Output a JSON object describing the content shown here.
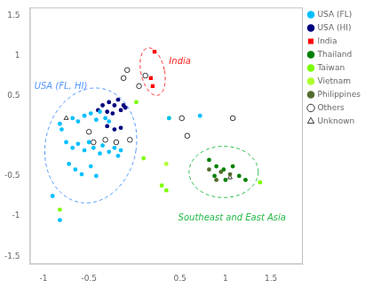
{
  "chart_data": {
    "type": "scatter",
    "series": [
      {
        "name": "USA (FL)",
        "color": "#00BFFF",
        "marker": "circle",
        "values": [
          [
            -0.82,
            0.15
          ],
          [
            -0.8,
            0.08
          ],
          [
            -0.68,
            0.22
          ],
          [
            -0.62,
            0.18
          ],
          [
            -0.55,
            0.25
          ],
          [
            -0.48,
            0.28
          ],
          [
            -0.42,
            0.2
          ],
          [
            -0.38,
            0.3
          ],
          [
            -0.32,
            0.22
          ],
          [
            -0.28,
            0.18
          ],
          [
            -0.75,
            -0.08
          ],
          [
            -0.68,
            -0.15
          ],
          [
            -0.62,
            -0.1
          ],
          [
            -0.55,
            -0.18
          ],
          [
            -0.5,
            -0.08
          ],
          [
            -0.45,
            -0.15
          ],
          [
            -0.38,
            -0.22
          ],
          [
            -0.35,
            -0.12
          ],
          [
            -0.28,
            -0.2
          ],
          [
            -0.22,
            -0.15
          ],
          [
            -0.18,
            -0.25
          ],
          [
            -0.15,
            -0.18
          ],
          [
            -0.72,
            -0.35
          ],
          [
            -0.65,
            -0.42
          ],
          [
            -0.58,
            -0.48
          ],
          [
            -0.48,
            -0.38
          ],
          [
            -0.42,
            -0.5
          ],
          [
            -0.9,
            -0.75
          ],
          [
            -0.82,
            -1.05
          ],
          [
            0.72,
            0.25
          ],
          [
            0.38,
            0.22
          ]
        ]
      },
      {
        "name": "USA (HI)",
        "color": "#000080",
        "marker": "circle",
        "values": [
          [
            -0.35,
            0.38
          ],
          [
            -0.28,
            0.42
          ],
          [
            -0.22,
            0.38
          ],
          [
            -0.18,
            0.45
          ],
          [
            -0.12,
            0.38
          ],
          [
            -0.3,
            0.3
          ],
          [
            -0.24,
            0.28
          ],
          [
            -0.15,
            0.32
          ],
          [
            -0.4,
            0.32
          ],
          [
            -0.1,
            0.35
          ],
          [
            -0.3,
            0.12
          ],
          [
            -0.22,
            0.08
          ],
          [
            -0.15,
            0.1
          ]
        ]
      },
      {
        "name": "India",
        "color": "#FF0000",
        "marker": "square",
        "values": [
          [
            0.22,
            1.05
          ],
          [
            0.18,
            0.72
          ],
          [
            0.2,
            0.62
          ]
        ]
      },
      {
        "name": "Thailand",
        "color": "#008000",
        "marker": "circle",
        "values": [
          [
            0.82,
            -0.3
          ],
          [
            0.9,
            -0.38
          ],
          [
            0.98,
            -0.42
          ],
          [
            1.08,
            -0.38
          ],
          [
            0.88,
            -0.5
          ],
          [
            1.0,
            -0.55
          ],
          [
            1.15,
            -0.5
          ],
          [
            1.22,
            -0.55
          ]
        ]
      },
      {
        "name": "Taiwan",
        "color": "#7CFC00",
        "marker": "circle",
        "values": [
          [
            0.02,
            0.42
          ],
          [
            0.38,
            0.22
          ],
          [
            0.1,
            -0.28
          ],
          [
            0.3,
            -0.62
          ],
          [
            0.35,
            -0.68
          ],
          [
            1.38,
            -0.58
          ],
          [
            -0.82,
            -0.92
          ]
        ]
      },
      {
        "name": "Vietnam",
        "color": "#ADFF2F",
        "marker": "circle",
        "values": [
          [
            0.35,
            -0.35
          ]
        ]
      },
      {
        "name": "Philippines",
        "color": "#556B2F",
        "marker": "circle",
        "values": [
          [
            0.82,
            -0.42
          ],
          [
            0.95,
            -0.45
          ],
          [
            1.05,
            -0.48
          ],
          [
            0.9,
            -0.55
          ]
        ]
      },
      {
        "name": "Others",
        "color": "#333333",
        "marker": "open_circle",
        "values": [
          [
            -0.08,
            0.82
          ],
          [
            -0.12,
            0.72
          ],
          [
            0.05,
            0.62
          ],
          [
            0.12,
            0.75
          ],
          [
            -0.05,
            -0.05
          ],
          [
            -0.2,
            -0.08
          ],
          [
            -0.32,
            -0.05
          ],
          [
            -0.45,
            -0.08
          ],
          [
            -0.5,
            0.05
          ],
          [
            0.52,
            0.22
          ],
          [
            1.08,
            0.22
          ],
          [
            0.58,
            0.0
          ]
        ]
      },
      {
        "name": "Unknown",
        "color": "#333333",
        "marker": "open_triangle",
        "values": [
          [
            -0.75,
            0.22
          ],
          [
            1.05,
            -0.52
          ]
        ]
      }
    ],
    "xlim": [
      -1.15,
      1.85
    ],
    "ylim": [
      -1.6,
      1.6
    ],
    "xticks": [
      -1,
      -0.5,
      0.5,
      1,
      1.5
    ],
    "yticks": [
      -1.5,
      -1,
      -0.5,
      0.5,
      1,
      1.5
    ],
    "grid": false,
    "legend": "right",
    "ellipses": [
      {
        "cx": 0.2,
        "cy": 0.8,
        "rx": 0.13,
        "ry": 0.3,
        "angle": 10,
        "color": "#FF2222"
      },
      {
        "cx": -0.48,
        "cy": -0.12,
        "rx": 0.5,
        "ry": 0.72,
        "angle": -8,
        "color": "#5599FF"
      },
      {
        "cx": 0.98,
        "cy": -0.45,
        "rx": 0.38,
        "ry": 0.32,
        "angle": 0,
        "color": "#22BB44"
      }
    ],
    "annotations": [
      {
        "x": 0.38,
        "y": 0.9,
        "text": "India",
        "color": "#FF2222"
      },
      {
        "x": -1.1,
        "y": 0.58,
        "text": "USA (FL, HI)",
        "color": "#5599FF"
      },
      {
        "x": 0.48,
        "y": -1.05,
        "text": "Southeast and East Asia",
        "color": "#22BB44"
      }
    ]
  }
}
